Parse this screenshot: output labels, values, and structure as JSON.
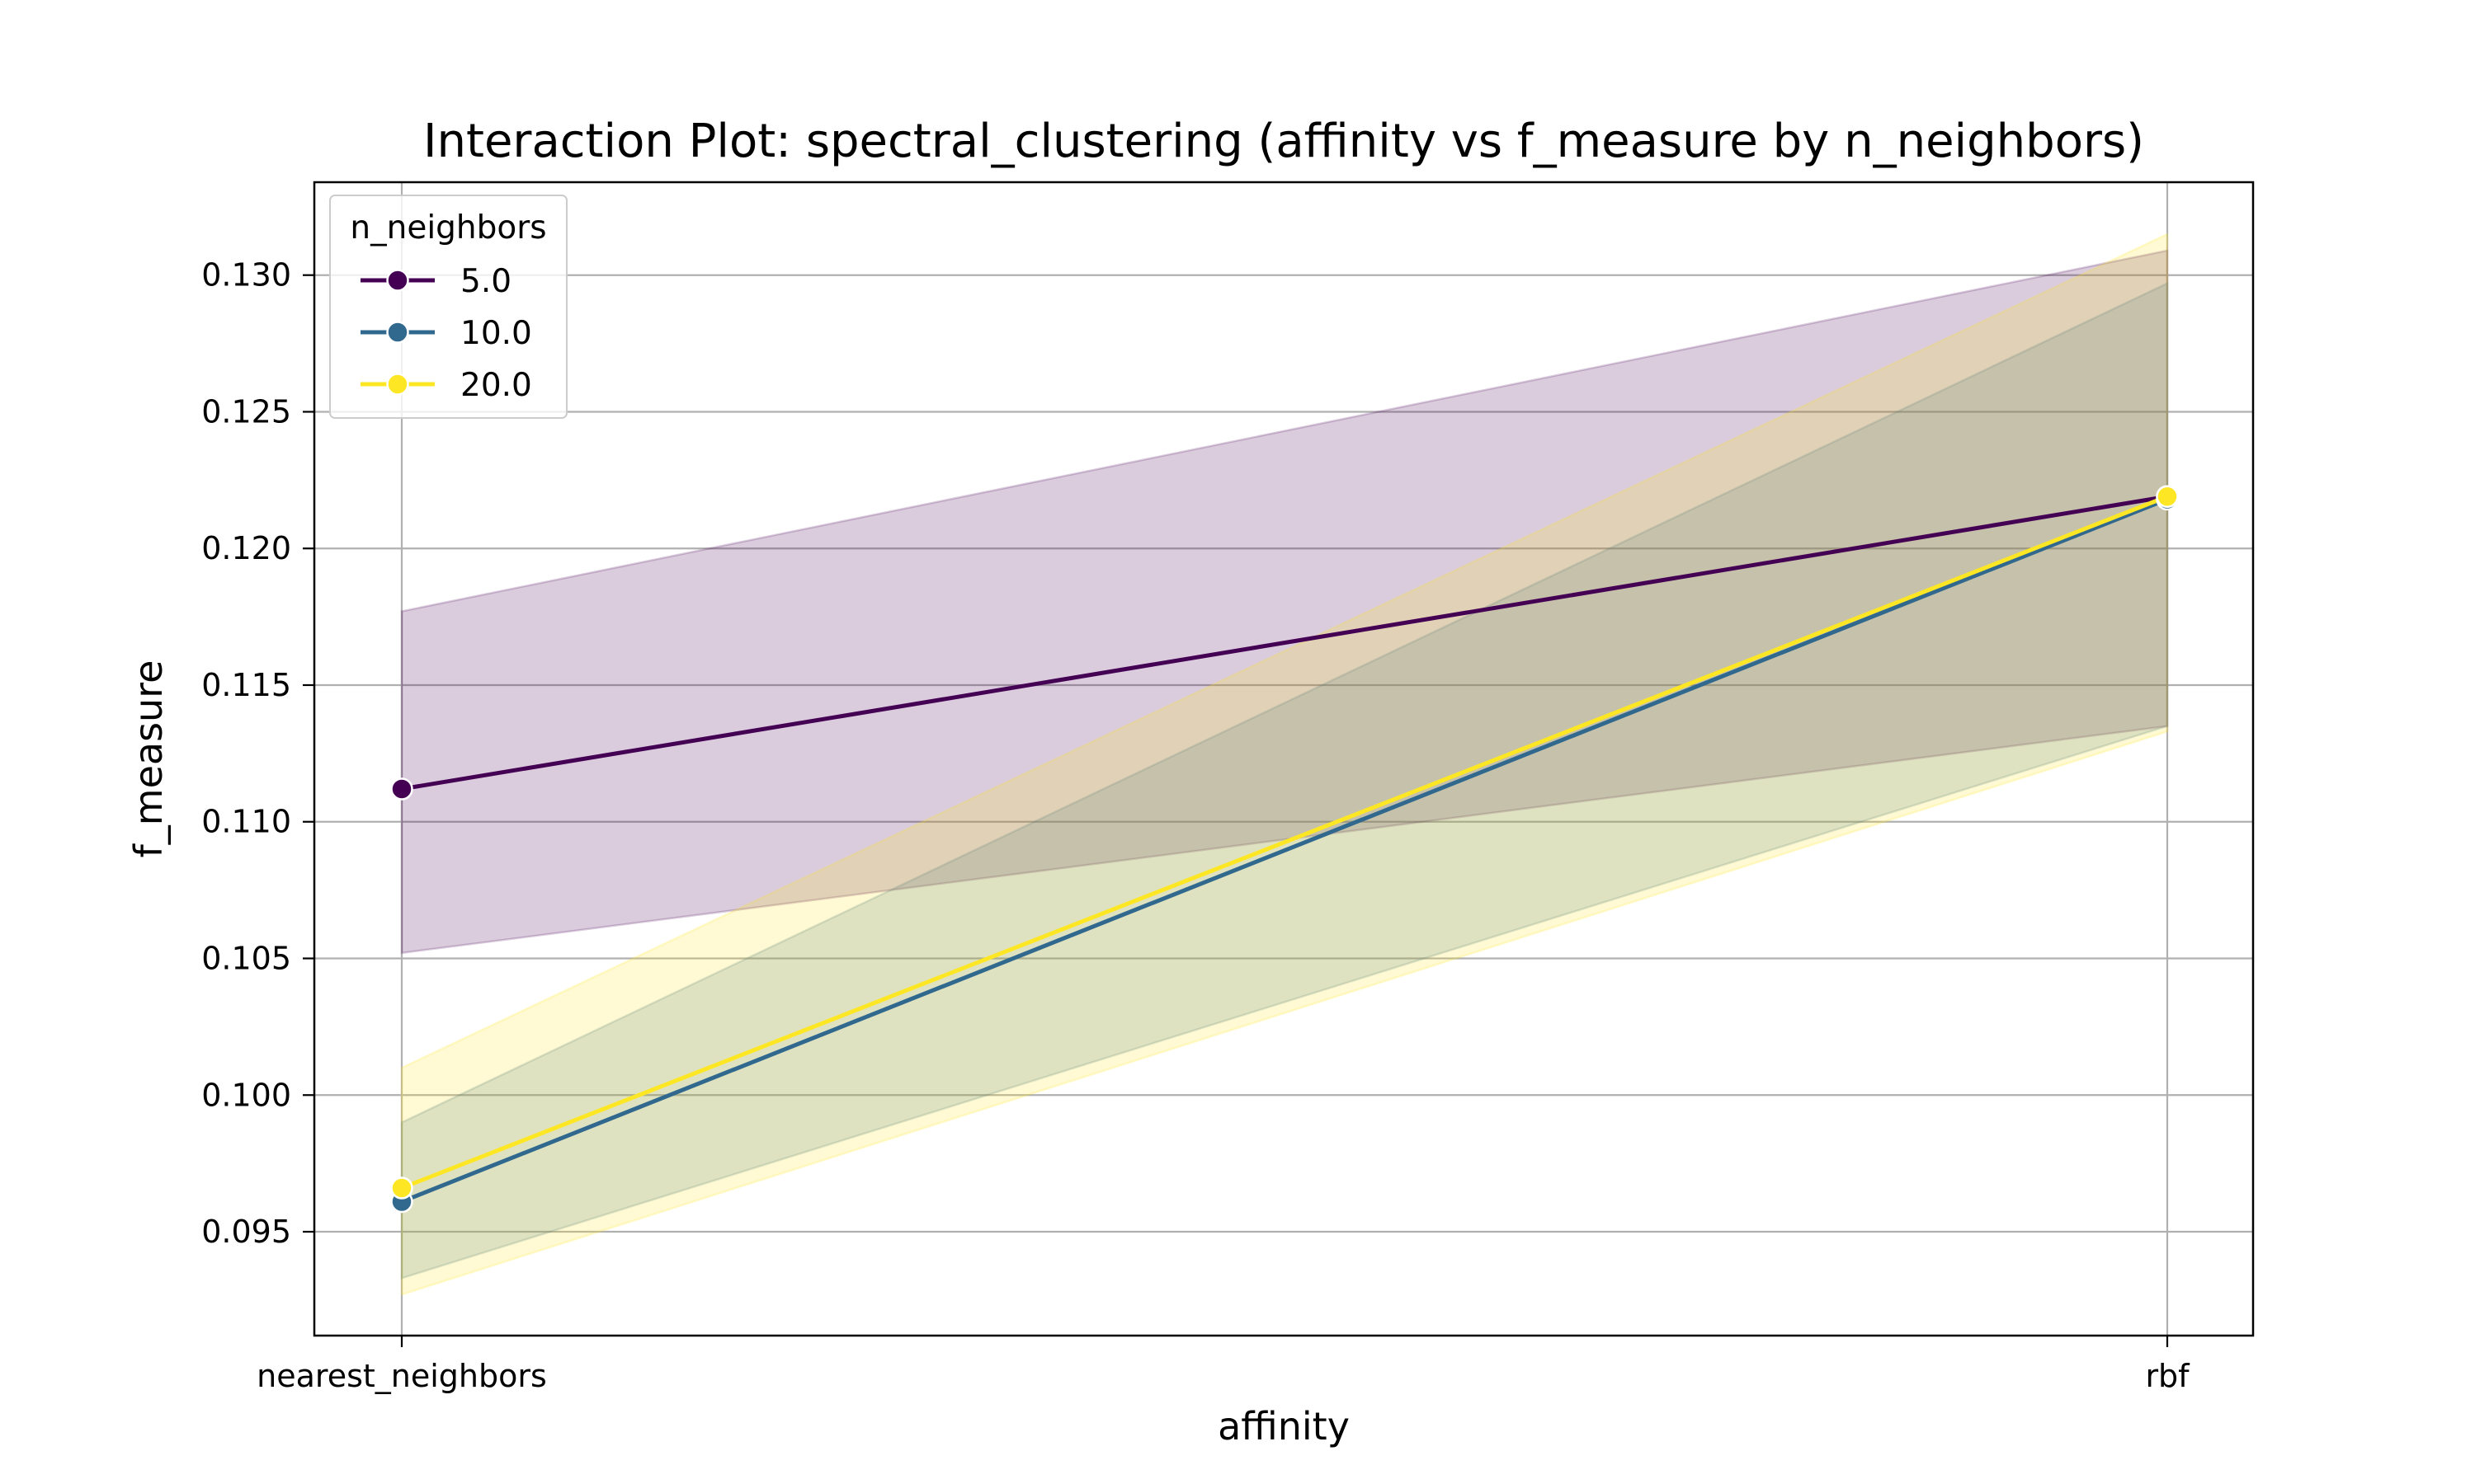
{
  "chart_data": {
    "type": "line",
    "title": "Interaction Plot: spectral_clustering (affinity vs f_measure by n_neighbors)",
    "xlabel": "affinity",
    "ylabel": "f_measure",
    "categories": [
      "nearest_neighbors",
      "rbf"
    ],
    "ylim": [
      0.0912,
      0.1334
    ],
    "yticks": [
      0.095,
      0.1,
      0.105,
      0.11,
      0.115,
      0.12,
      0.125,
      0.13
    ],
    "ytick_labels": [
      "0.095",
      "0.100",
      "0.105",
      "0.110",
      "0.115",
      "0.120",
      "0.125",
      "0.130"
    ],
    "grid": true,
    "legend": {
      "title": "n_neighbors",
      "placement": "top-left"
    },
    "series": [
      {
        "name": "5.0",
        "color": "#440154",
        "values": [
          0.1112,
          0.1219
        ],
        "ci_lower": [
          0.1052,
          0.1135
        ],
        "ci_upper": [
          0.1177,
          0.1309
        ]
      },
      {
        "name": "10.0",
        "color": "#31688e",
        "values": [
          0.0961,
          0.1218
        ],
        "ci_lower": [
          0.0933,
          0.1135
        ],
        "ci_upper": [
          0.099,
          0.1297
        ]
      },
      {
        "name": "20.0",
        "color": "#fde725",
        "values": [
          0.0966,
          0.1219
        ],
        "ci_lower": [
          0.0927,
          0.1133
        ],
        "ci_upper": [
          0.101,
          0.1315
        ]
      }
    ]
  }
}
